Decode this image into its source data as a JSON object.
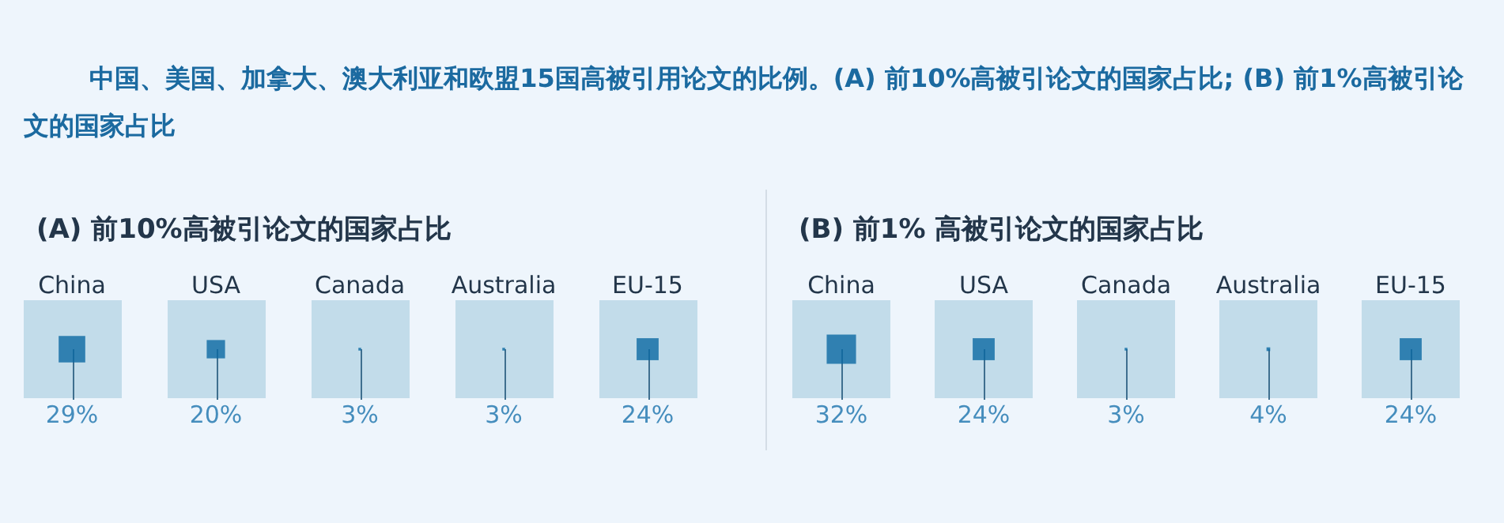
{
  "chart_data": [
    {
      "type": "other",
      "title": "中国、美国、加拿大、澳大利亚和欧盟15国高被引用论文的比例。(A) 前10%高被引论文的国家占比; (B) 前1%高被引论文的国家占比",
      "subtitle": "(A) 前10%高被引论文的国家占比",
      "categories": [
        "China",
        "USA",
        "Canada",
        "Australia",
        "EU-15"
      ],
      "values": [
        29,
        20,
        3,
        3,
        24
      ],
      "value_labels": [
        "29%",
        "20%",
        "3%",
        "3%",
        "24%"
      ],
      "color": "#0b69a3"
    },
    {
      "type": "other",
      "subtitle": "(B) 前1% 高被引论文的国家占比",
      "categories": [
        "China",
        "USA",
        "Canada",
        "Australia",
        "EU-15"
      ],
      "values": [
        32,
        24,
        3,
        4,
        24
      ],
      "value_labels": [
        "32%",
        "24%",
        "3%",
        "4%",
        "24%"
      ],
      "color": "#0b69a3"
    }
  ]
}
